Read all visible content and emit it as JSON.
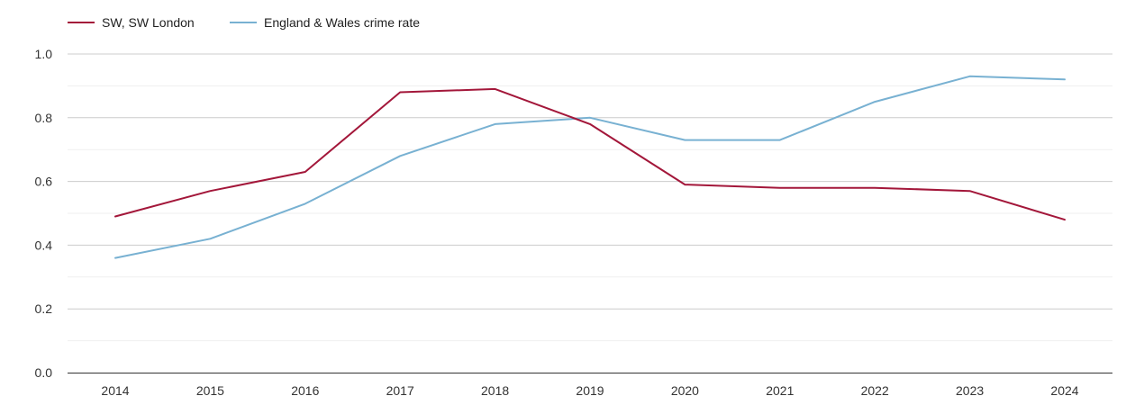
{
  "chart_data": {
    "type": "line",
    "title": "",
    "xlabel": "",
    "ylabel": "",
    "x": [
      "2014",
      "2015",
      "2016",
      "2017",
      "2018",
      "2019",
      "2020",
      "2021",
      "2022",
      "2023",
      "2024"
    ],
    "ylim": [
      0,
      1.0
    ],
    "yticks": [
      "0.0",
      "0.2",
      "0.4",
      "0.6",
      "0.8",
      "1.0"
    ],
    "grid": true,
    "legend_position": "top-left",
    "series": [
      {
        "name": "SW, SW London",
        "color": "#a3173a",
        "values": [
          0.49,
          0.57,
          0.63,
          0.88,
          0.89,
          0.78,
          0.59,
          0.58,
          0.58,
          0.57,
          0.48
        ]
      },
      {
        "name": "England & Wales crime rate",
        "color": "#78b1d2",
        "values": [
          0.36,
          0.42,
          0.53,
          0.68,
          0.78,
          0.8,
          0.73,
          0.73,
          0.85,
          0.93,
          0.92
        ]
      }
    ]
  }
}
